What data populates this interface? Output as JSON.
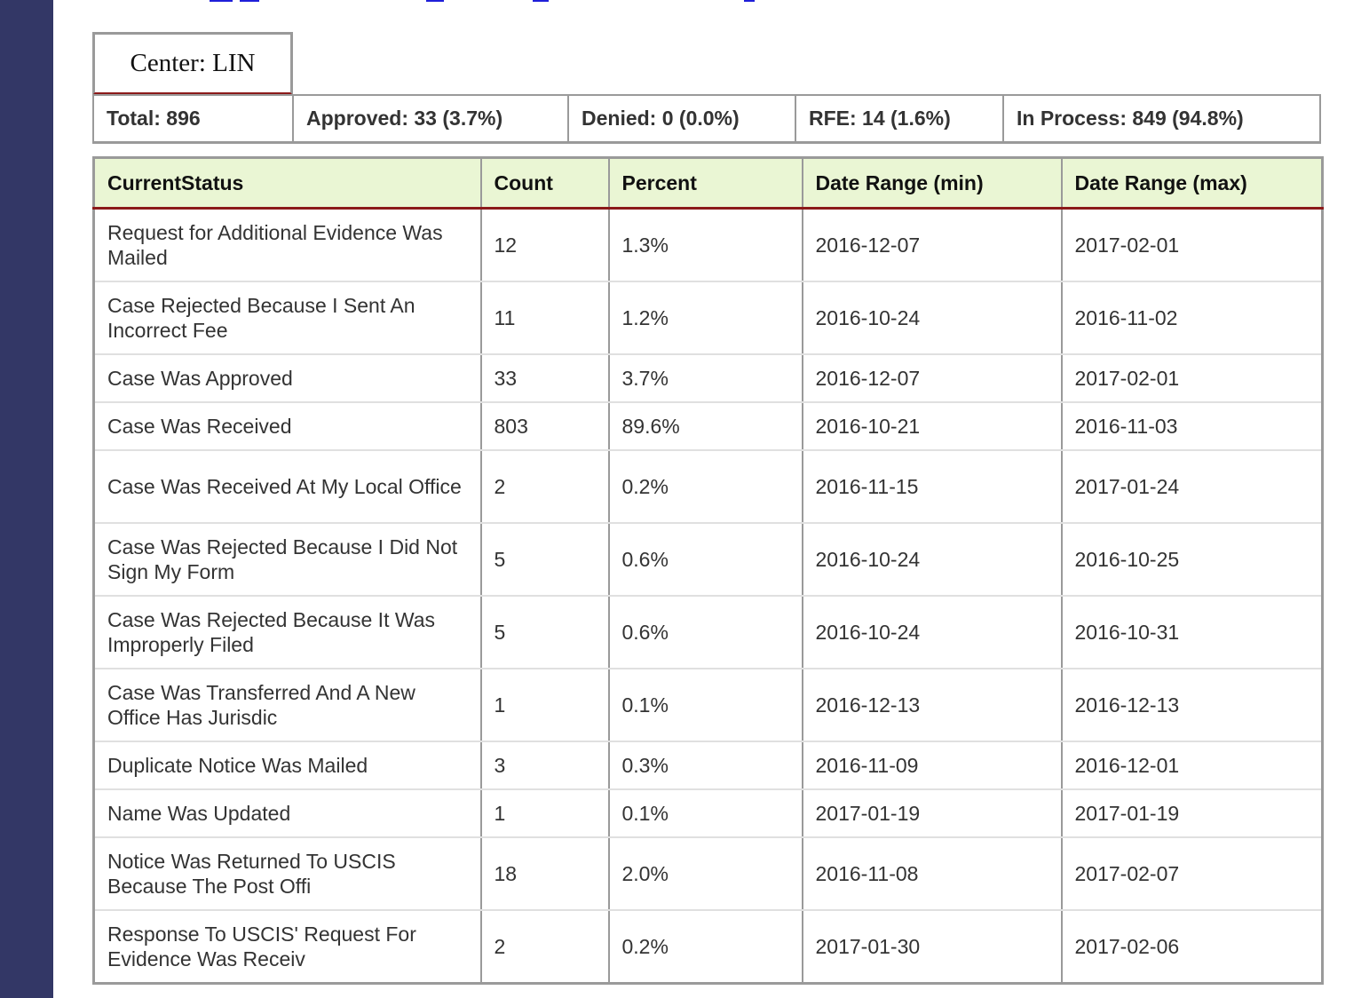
{
  "center_tab": {
    "label": "Center: LIN"
  },
  "summary": [
    {
      "label": "Total: 896"
    },
    {
      "label": "Approved: 33 (3.7%)"
    },
    {
      "label": "Denied: 0 (0.0%)"
    },
    {
      "label": "RFE: 14 (1.6%)"
    },
    {
      "label": "In Process: 849 (94.8%)"
    }
  ],
  "table": {
    "headers": [
      "CurrentStatus",
      "Count",
      "Percent",
      "Date Range (min)",
      "Date Range (max)"
    ],
    "rows": [
      {
        "status": "Request for Additional Evidence Was Mailed",
        "count": "12",
        "percent": "1.3%",
        "min": "2016-12-07",
        "max": "2017-02-01"
      },
      {
        "status": "Case Rejected Because I Sent An Incorrect Fee",
        "count": "11",
        "percent": "1.2%",
        "min": "2016-10-24",
        "max": "2016-11-02"
      },
      {
        "status": "Case Was Approved",
        "count": "33",
        "percent": "3.7%",
        "min": "2016-12-07",
        "max": "2017-02-01"
      },
      {
        "status": "Case Was Received",
        "count": "803",
        "percent": "89.6%",
        "min": "2016-10-21",
        "max": "2016-11-03"
      },
      {
        "status": "Case Was Received At My Local Office",
        "count": "2",
        "percent": "0.2%",
        "min": "2016-11-15",
        "max": "2017-01-24"
      },
      {
        "status": "Case Was Rejected Because I Did Not Sign My Form",
        "count": "5",
        "percent": "0.6%",
        "min": "2016-10-24",
        "max": "2016-10-25"
      },
      {
        "status": "Case Was Rejected Because It Was Improperly Filed",
        "count": "5",
        "percent": "0.6%",
        "min": "2016-10-24",
        "max": "2016-10-31"
      },
      {
        "status": "Case Was Transferred And A New Office Has Jurisdic",
        "count": "1",
        "percent": "0.1%",
        "min": "2016-12-13",
        "max": "2016-12-13"
      },
      {
        "status": "Duplicate Notice Was Mailed",
        "count": "3",
        "percent": "0.3%",
        "min": "2016-11-09",
        "max": "2016-12-01"
      },
      {
        "status": "Name Was Updated",
        "count": "1",
        "percent": "0.1%",
        "min": "2017-01-19",
        "max": "2017-01-19"
      },
      {
        "status": "Notice Was Returned To USCIS Because The Post Offi",
        "count": "18",
        "percent": "2.0%",
        "min": "2016-11-08",
        "max": "2017-02-07"
      },
      {
        "status": "Response To USCIS' Request For Evidence Was Receiv",
        "count": "2",
        "percent": "0.2%",
        "min": "2017-01-30",
        "max": "2017-02-06"
      }
    ]
  }
}
